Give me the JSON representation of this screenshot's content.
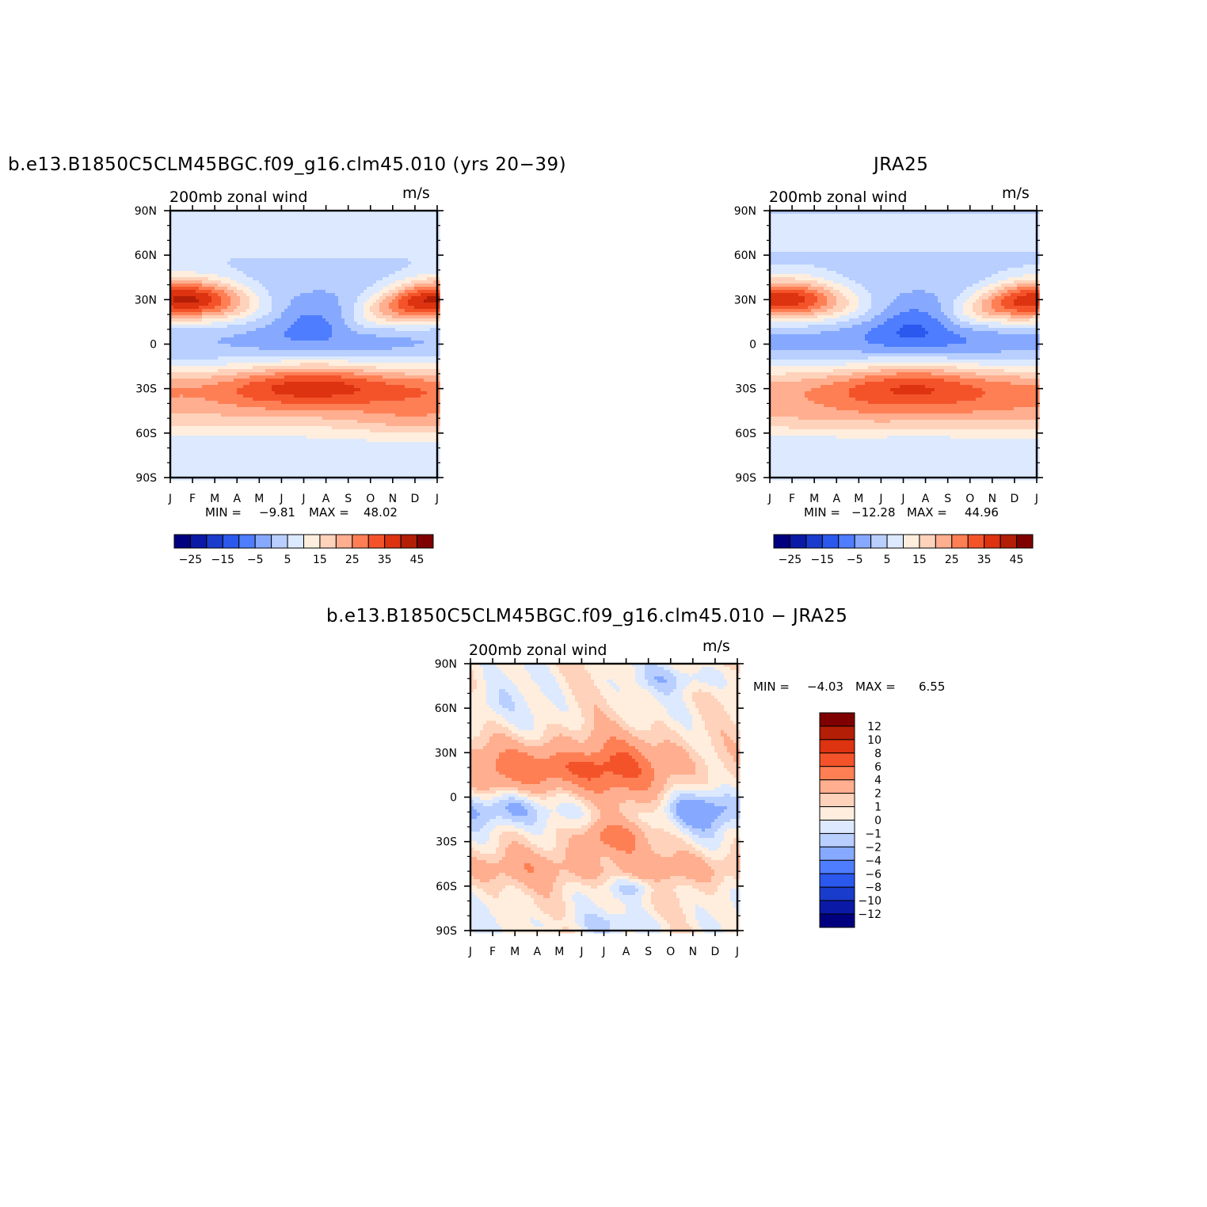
{
  "chart_data": [
    {
      "type": "heatmap",
      "title": "b.e13.B1850C5CLM45BGC.f09_g16.clm45.010 (yrs 20−39)",
      "subtitle_left": "200mb zonal wind",
      "units": "m/s",
      "x_ticks": [
        "J",
        "F",
        "M",
        "A",
        "M",
        "J",
        "J",
        "A",
        "S",
        "O",
        "N",
        "D",
        "J"
      ],
      "y_ticks": [
        "90N",
        "60N",
        "30N",
        "0",
        "30S",
        "60S",
        "90S"
      ],
      "min_label": "MIN =",
      "min_value": "−9.81",
      "max_label": "MAX =",
      "max_value": "48.02",
      "colorbar_labels": [
        "−25",
        "−15",
        "−5",
        "5",
        "15",
        "25",
        "35",
        "45"
      ],
      "colorbar_levels": [
        -30,
        -25,
        -20,
        -15,
        -10,
        -5,
        0,
        5,
        10,
        15,
        20,
        25,
        30,
        35,
        40,
        45,
        50
      ],
      "field": "model"
    },
    {
      "type": "heatmap",
      "title": "JRA25",
      "subtitle_left": "200mb zonal wind",
      "units": "m/s",
      "x_ticks": [
        "J",
        "F",
        "M",
        "A",
        "M",
        "J",
        "J",
        "A",
        "S",
        "O",
        "N",
        "D",
        "J"
      ],
      "y_ticks": [
        "90N",
        "60N",
        "30N",
        "0",
        "30S",
        "60S",
        "90S"
      ],
      "min_label": "MIN =",
      "min_value": "−12.28",
      "max_label": "MAX =",
      "max_value": "44.96",
      "colorbar_labels": [
        "−25",
        "−15",
        "−5",
        "5",
        "15",
        "25",
        "35",
        "45"
      ],
      "colorbar_levels": [
        -30,
        -25,
        -20,
        -15,
        -10,
        -5,
        0,
        5,
        10,
        15,
        20,
        25,
        30,
        35,
        40,
        45,
        50
      ],
      "field": "obs"
    },
    {
      "type": "heatmap",
      "title": "b.e13.B1850C5CLM45BGC.f09_g16.clm45.010 − JRA25",
      "subtitle_left": "200mb zonal wind",
      "units": "m/s",
      "x_ticks": [
        "J",
        "F",
        "M",
        "A",
        "M",
        "J",
        "J",
        "A",
        "S",
        "O",
        "N",
        "D",
        "J"
      ],
      "y_ticks": [
        "90N",
        "60N",
        "30N",
        "0",
        "30S",
        "60S",
        "90S"
      ],
      "min_label": "MIN =",
      "min_value": "−4.03",
      "max_label": "MAX =",
      "max_value": "6.55",
      "colorbar_labels": [
        "12",
        "10",
        "8",
        "6",
        "4",
        "2",
        "1",
        "0",
        "−1",
        "−2",
        "−4",
        "−6",
        "−8",
        "−10",
        "−12"
      ],
      "colorbar_levels": [
        -14,
        -12,
        -10,
        -8,
        -6,
        -4,
        -2,
        -1,
        0,
        1,
        2,
        4,
        6,
        8,
        10,
        12,
        14
      ],
      "field": "diff"
    }
  ],
  "colors": [
    "#00007f",
    "#0a1aa6",
    "#1a3ccc",
    "#2b59ee",
    "#4f7dff",
    "#86a9ff",
    "#b8cfff",
    "#dde9ff",
    "#ffeedd",
    "#ffd2bb",
    "#ffae8f",
    "#ff7f55",
    "#f4532a",
    "#dd3310",
    "#b31e06",
    "#7f0000"
  ]
}
